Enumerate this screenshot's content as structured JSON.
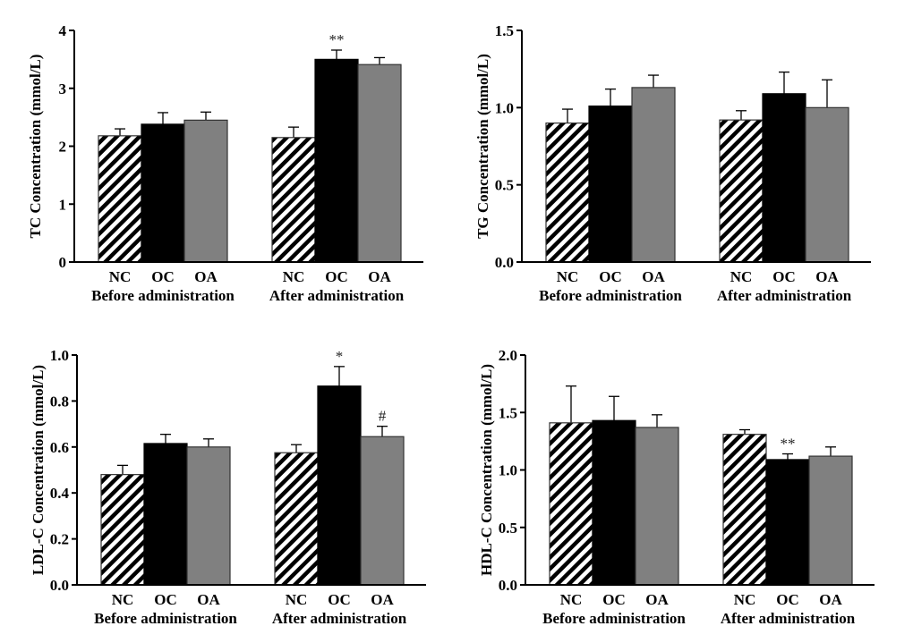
{
  "colors": {
    "NC": "hatched",
    "OC": "#000000",
    "OA": "#808080",
    "error_bar": "#000000"
  },
  "chart_data": [
    {
      "type": "bar",
      "ylabel": "TC Concentration (mmol/L)",
      "ylim": [
        0,
        4
      ],
      "yticks": [
        "0",
        "1",
        "2",
        "3",
        "4"
      ],
      "groups": [
        "Before administration",
        "After administration"
      ],
      "categories": [
        "NC",
        "OC",
        "OA"
      ],
      "series": [
        {
          "values": [
            2.18,
            2.38,
            2.45
          ],
          "errors": [
            0.12,
            0.2,
            0.14
          ],
          "annotations": [
            "",
            "",
            ""
          ]
        },
        {
          "values": [
            2.15,
            3.5,
            3.41
          ],
          "errors": [
            0.18,
            0.16,
            0.12
          ],
          "annotations": [
            "",
            "**",
            ""
          ]
        }
      ]
    },
    {
      "type": "bar",
      "ylabel": "TG Concentration (mmol/L)",
      "ylim": [
        0,
        1.5
      ],
      "yticks": [
        "0.0",
        "0.5",
        "1.0",
        "1.5"
      ],
      "groups": [
        "Before administration",
        "After administration"
      ],
      "categories": [
        "NC",
        "OC",
        "OA"
      ],
      "series": [
        {
          "values": [
            0.9,
            1.01,
            1.13
          ],
          "errors": [
            0.09,
            0.11,
            0.08
          ],
          "annotations": [
            "",
            "",
            ""
          ]
        },
        {
          "values": [
            0.92,
            1.09,
            1.0
          ],
          "errors": [
            0.06,
            0.14,
            0.18
          ],
          "annotations": [
            "",
            "",
            ""
          ]
        }
      ]
    },
    {
      "type": "bar",
      "ylabel": "LDL-C Concentration (mmol/L)",
      "ylim": [
        0,
        1.0
      ],
      "yticks": [
        "0.0",
        "0.2",
        "0.4",
        "0.6",
        "0.8",
        "1.0"
      ],
      "groups": [
        "Before administration",
        "After administration"
      ],
      "categories": [
        "NC",
        "OC",
        "OA"
      ],
      "series": [
        {
          "values": [
            0.48,
            0.615,
            0.6
          ],
          "errors": [
            0.04,
            0.04,
            0.035
          ],
          "annotations": [
            "",
            "",
            ""
          ]
        },
        {
          "values": [
            0.575,
            0.865,
            0.645
          ],
          "errors": [
            0.035,
            0.085,
            0.045
          ],
          "annotations": [
            "",
            "*",
            "#"
          ]
        }
      ]
    },
    {
      "type": "bar",
      "ylabel": "HDL-C Concentration (mmol/L)",
      "ylim": [
        0,
        2.0
      ],
      "yticks": [
        "0.0",
        "0.5",
        "1.0",
        "1.5",
        "2.0"
      ],
      "groups": [
        "Before administration",
        "After administration"
      ],
      "categories": [
        "NC",
        "OC",
        "OA"
      ],
      "series": [
        {
          "values": [
            1.41,
            1.43,
            1.37
          ],
          "errors": [
            0.32,
            0.21,
            0.11
          ],
          "annotations": [
            "",
            "",
            ""
          ]
        },
        {
          "values": [
            1.31,
            1.09,
            1.12
          ],
          "errors": [
            0.04,
            0.05,
            0.08
          ],
          "annotations": [
            "",
            "**",
            ""
          ]
        }
      ]
    }
  ]
}
